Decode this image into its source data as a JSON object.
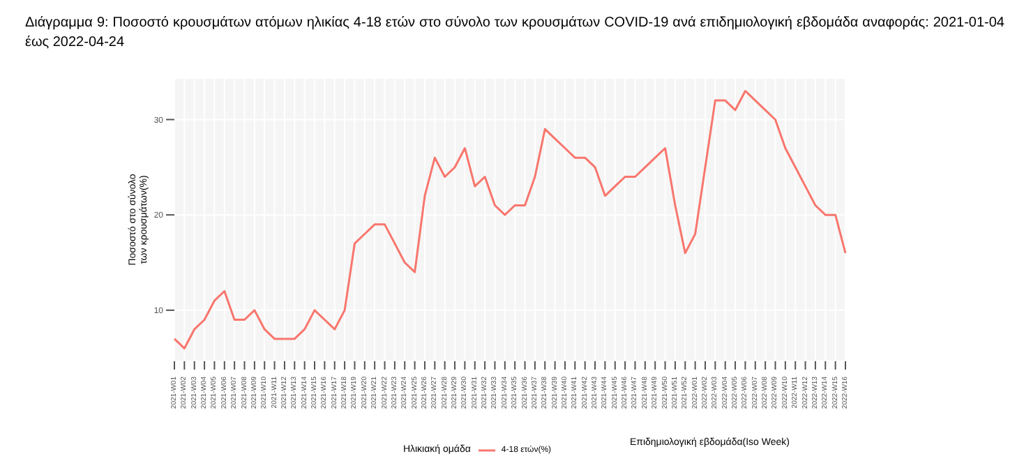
{
  "chart_data": {
    "type": "line",
    "title": "Διάγραμμα 9: Ποσοστό κρουσμάτων ατόμων ηλικίας 4-18 ετών στο σύνολο των κρουσμάτων COVID-19 ανά επιδημιολογική εβδομάδα αναφοράς: 2021-01-04 έως 2022-04-24",
    "xlabel": "Επιδημιολογική εβδομάδα(Iso Week)",
    "ylabel": "Ποσοστό στο σύνολο των κρουσμάτων(%)",
    "legend_title": "Ηλικιακή ομάδα",
    "categories": [
      "2021-W01",
      "2021-W02",
      "2021-W03",
      "2021-W04",
      "2021-W05",
      "2021-W06",
      "2021-W07",
      "2021-W08",
      "2021-W09",
      "2021-W10",
      "2021-W11",
      "2021-W12",
      "2021-W13",
      "2021-W14",
      "2021-W15",
      "2021-W16",
      "2021-W17",
      "2021-W18",
      "2021-W19",
      "2021-W20",
      "2021-W21",
      "2021-W22",
      "2021-W23",
      "2021-W24",
      "2021-W25",
      "2021-W26",
      "2021-W27",
      "2021-W28",
      "2021-W29",
      "2021-W30",
      "2021-W31",
      "2021-W32",
      "2021-W33",
      "2021-W34",
      "2021-W35",
      "2021-W36",
      "2021-W37",
      "2021-W38",
      "2021-W39",
      "2021-W40",
      "2021-W41",
      "2021-W42",
      "2021-W43",
      "2021-W44",
      "2021-W45",
      "2021-W46",
      "2021-W47",
      "2021-W48",
      "2021-W49",
      "2021-W50",
      "2021-W51",
      "2021-W52",
      "2022-W01",
      "2022-W02",
      "2022-W03",
      "2022-W04",
      "2022-W05",
      "2022-W06",
      "2022-W07",
      "2022-W08",
      "2022-W09",
      "2022-W10",
      "2022-W11",
      "2022-W12",
      "2022-W13",
      "2022-W14",
      "2022-W15",
      "2022-W16"
    ],
    "series": [
      {
        "name": "4-18 ετών(%)",
        "color": "#f8766d",
        "values": [
          7,
          6,
          8,
          9,
          11,
          12,
          9,
          9,
          10,
          8,
          7,
          7,
          7,
          8,
          10,
          9,
          8,
          10,
          17,
          18,
          19,
          19,
          17,
          15,
          14,
          22,
          26,
          24,
          25,
          27,
          23,
          24,
          21,
          20,
          21,
          21,
          24,
          29,
          28,
          27,
          26,
          26,
          25,
          22,
          23,
          24,
          24,
          25,
          26,
          27,
          21,
          16,
          18,
          25,
          32,
          32,
          31,
          33,
          32,
          31,
          30,
          27,
          25,
          23,
          21,
          20,
          20,
          16
        ]
      }
    ],
    "ylim": [
      4.65,
      34.35
    ],
    "yticks": [
      10,
      20,
      30
    ],
    "grid": true,
    "legend": "bottom",
    "marker": "none",
    "line_style": "solid"
  }
}
